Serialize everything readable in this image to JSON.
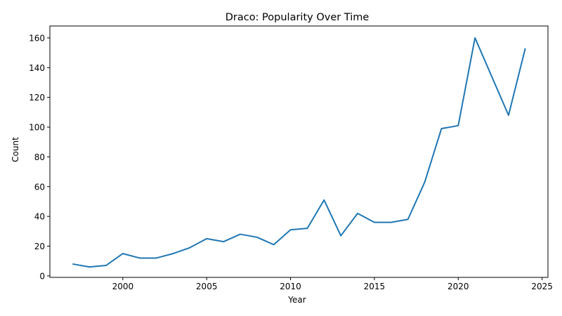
{
  "chart_data": {
    "type": "line",
    "title": "Draco: Popularity Over Time",
    "xlabel": "Year",
    "ylabel": "Count",
    "xlim": [
      1995.65,
      2025.35
    ],
    "ylim": [
      -1,
      168
    ],
    "xticks": [
      2000,
      2005,
      2010,
      2015,
      2020,
      2025
    ],
    "yticks": [
      0,
      20,
      40,
      60,
      80,
      100,
      120,
      140,
      160
    ],
    "grid": false,
    "line_color": "#1f77b4",
    "series": [
      {
        "x": [
          1997,
          1998,
          1999,
          2000,
          2001,
          2002,
          2003,
          2004,
          2005,
          2006,
          2007,
          2008,
          2009,
          2010,
          2011,
          2012,
          2013,
          2014,
          2015,
          2016,
          2017,
          2018,
          2019,
          2020,
          2021,
          2022,
          2023,
          2024
        ],
        "values": [
          8,
          6,
          7,
          15,
          12,
          12,
          15,
          19,
          25,
          23,
          28,
          26,
          21,
          31,
          32,
          51,
          27,
          42,
          36,
          36,
          38,
          63,
          99,
          101,
          160,
          134,
          108,
          153
        ]
      }
    ]
  }
}
